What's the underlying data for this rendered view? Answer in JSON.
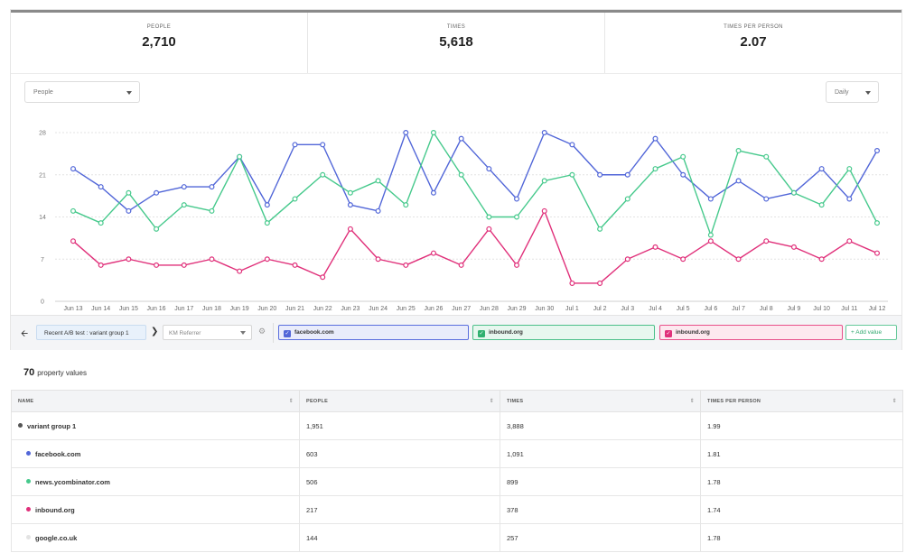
{
  "stats": [
    {
      "label": "PEOPLE",
      "value": "2,710"
    },
    {
      "label": "TIMES",
      "value": "5,618"
    },
    {
      "label": "TIMES PER PERSON",
      "value": "2.07"
    }
  ],
  "controls": {
    "metric_select": "People",
    "interval_select": "Daily"
  },
  "colors": {
    "blue": "#5166d8",
    "green": "#46c98c",
    "pink": "#e0307a",
    "grey_dot": "#e3e3e3",
    "dark_dot": "#555555"
  },
  "chart_data": {
    "type": "line",
    "categories": [
      "Jun 13",
      "Jun 14",
      "Jun 15",
      "Jun 16",
      "Jun 17",
      "Jun 18",
      "Jun 19",
      "Jun 20",
      "Jun 21",
      "Jun 22",
      "Jun 23",
      "Jun 24",
      "Jun 25",
      "Jun 26",
      "Jun 27",
      "Jun 28",
      "Jun 29",
      "Jun 30",
      "Jul 1",
      "Jul 2",
      "Jul 3",
      "Jul 4",
      "Jul 5",
      "Jul 6",
      "Jul 7",
      "Jul 8",
      "Jul 9",
      "Jul 10",
      "Jul 11",
      "Jul 12"
    ],
    "yticks": [
      0,
      7,
      14,
      21,
      28
    ],
    "ylim": [
      0,
      28
    ],
    "series": [
      {
        "name": "facebook.com",
        "color": "#5166d8",
        "values": [
          22,
          19,
          15,
          18,
          19,
          19,
          24,
          16,
          26,
          26,
          16,
          15,
          28,
          18,
          27,
          22,
          17,
          28,
          26,
          21,
          21,
          27,
          21,
          17,
          20,
          17,
          18,
          22,
          17,
          25
        ]
      },
      {
        "name": "news.ycombinator.com",
        "color": "#46c98c",
        "values": [
          15,
          13,
          18,
          12,
          16,
          15,
          24,
          13,
          17,
          21,
          18,
          20,
          16,
          28,
          21,
          14,
          14,
          20,
          21,
          12,
          17,
          22,
          24,
          11,
          25,
          24,
          18,
          16,
          22,
          13
        ]
      },
      {
        "name": "inbound.org",
        "color": "#e0307a",
        "values": [
          10,
          6,
          7,
          6,
          6,
          7,
          5,
          7,
          6,
          4,
          12,
          7,
          6,
          8,
          6,
          12,
          6,
          15,
          3,
          3,
          7,
          9,
          7,
          10,
          7,
          10,
          9,
          7,
          10,
          8
        ]
      }
    ]
  },
  "filter_bar": {
    "segment": "Recent A/B test : variant group 1",
    "property": "KM Referrer",
    "values": [
      {
        "label": "facebook.com"
      },
      {
        "label": "inbound.org"
      },
      {
        "label": "inbound.org"
      }
    ],
    "add_value": "+ Add value"
  },
  "table": {
    "count": "70",
    "count_label": "property values",
    "headers": [
      "NAME",
      "PEOPLE",
      "TIMES",
      "TIMES PER PERSON"
    ],
    "rows": [
      {
        "name": "variant group 1",
        "people": "1,951",
        "times": "3,888",
        "tpp": "1.99",
        "dot": "#555555",
        "child": false
      },
      {
        "name": "facebook.com",
        "people": "603",
        "times": "1,091",
        "tpp": "1.81",
        "dot": "#5166d8",
        "child": true
      },
      {
        "name": "news.ycombinator.com",
        "people": "506",
        "times": "899",
        "tpp": "1.78",
        "dot": "#46c98c",
        "child": true
      },
      {
        "name": "inbound.org",
        "people": "217",
        "times": "378",
        "tpp": "1.74",
        "dot": "#e0307a",
        "child": true
      },
      {
        "name": "google.co.uk",
        "people": "144",
        "times": "257",
        "tpp": "1.78",
        "dot": "#e3e3e3",
        "child": true
      }
    ]
  }
}
